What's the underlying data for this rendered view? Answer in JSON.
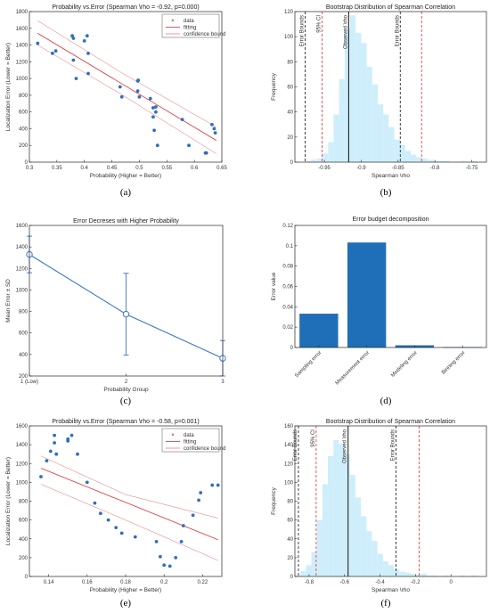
{
  "chart_data": [
    {
      "id": "a",
      "caption": "(a)",
      "type": "scatter",
      "title": "Probability vs.Error (Spearman \\rho = -0.92,  p=0.000)",
      "xlabel": "Probability (Higher = Better)",
      "ylabel": "Localization Error (Lower = Better)",
      "xlim": [
        0.3,
        0.65
      ],
      "ylim": [
        0,
        1800
      ],
      "xticks": [
        0.3,
        0.35,
        0.4,
        0.45,
        0.5,
        0.55,
        0.6,
        0.65
      ],
      "yticks": [
        0,
        200,
        400,
        600,
        800,
        1000,
        1200,
        1400,
        1600,
        1800
      ],
      "legend": [
        "data",
        "fitting",
        "confidence bound"
      ],
      "legend_position": "top-right",
      "points": [
        [
          0.315,
          1420
        ],
        [
          0.342,
          1300
        ],
        [
          0.348,
          1330
        ],
        [
          0.378,
          1510
        ],
        [
          0.38,
          1480
        ],
        [
          0.38,
          1220
        ],
        [
          0.385,
          1000
        ],
        [
          0.4,
          1450
        ],
        [
          0.405,
          1510
        ],
        [
          0.407,
          1300
        ],
        [
          0.407,
          1060
        ],
        [
          0.465,
          900
        ],
        [
          0.468,
          780
        ],
        [
          0.497,
          970
        ],
        [
          0.498,
          980
        ],
        [
          0.497,
          850
        ],
        [
          0.5,
          780
        ],
        [
          0.52,
          760
        ],
        [
          0.525,
          540
        ],
        [
          0.525,
          650
        ],
        [
          0.527,
          380
        ],
        [
          0.53,
          660
        ],
        [
          0.53,
          600
        ],
        [
          0.533,
          200
        ],
        [
          0.578,
          510
        ],
        [
          0.59,
          200
        ],
        [
          0.62,
          110
        ],
        [
          0.622,
          110
        ],
        [
          0.632,
          450
        ],
        [
          0.636,
          400
        ],
        [
          0.638,
          350
        ]
      ],
      "fit": [
        [
          0.315,
          1540
        ],
        [
          0.64,
          260
        ]
      ],
      "upper": [
        [
          0.315,
          1690
        ],
        [
          0.47,
          1060
        ],
        [
          0.64,
          420
        ]
      ],
      "lower": [
        [
          0.315,
          1400
        ],
        [
          0.47,
          800
        ],
        [
          0.64,
          100
        ]
      ]
    },
    {
      "id": "b",
      "caption": "(b)",
      "type": "histogram",
      "title": "Bootstrap Distribution of Spearman Correlation",
      "xlabel": "Spearman \\rho",
      "ylabel": "Frequency",
      "xlim": [
        -0.99,
        -0.73
      ],
      "ylim": [
        0,
        120
      ],
      "xticks": [
        -0.95,
        -0.9,
        -0.85,
        -0.8,
        -0.75
      ],
      "yticks": [
        0,
        20,
        40,
        60,
        80,
        100,
        120
      ],
      "bin_start": -0.975,
      "bin_width": 0.0075,
      "counts": [
        1,
        2,
        3,
        7,
        16,
        38,
        66,
        106,
        117,
        103,
        95,
        76,
        62,
        46,
        38,
        28,
        18,
        14,
        9,
        6,
        4,
        3,
        2,
        1,
        1,
        1,
        0,
        0,
        1,
        0,
        1
      ],
      "vlines": [
        {
          "x": -0.976,
          "label": "Error Bounds",
          "style": "black-dash"
        },
        {
          "x": -0.953,
          "label": "95% CI",
          "style": "red-dash"
        },
        {
          "x": -0.917,
          "label": "Observed \\rho",
          "style": "black-solid"
        },
        {
          "x": -0.847,
          "label": "Error Bounds",
          "style": "black-dash"
        },
        {
          "x": -0.818,
          "label": "",
          "style": "red-dash"
        }
      ]
    },
    {
      "id": "c",
      "caption": "(c)",
      "type": "line",
      "title": "Error Decreses with Higher Probability",
      "xlabel": "Probability Group",
      "ylabel": "Mean Error ± SD",
      "categories": [
        "1 (Low)",
        "2",
        "3"
      ],
      "xlim": [
        1,
        3
      ],
      "ylim": [
        200,
        1600
      ],
      "yticks": [
        200,
        400,
        600,
        800,
        1000,
        1200,
        1400,
        1600
      ],
      "means": [
        1330,
        775,
        365
      ],
      "sd": [
        170,
        380,
        165
      ]
    },
    {
      "id": "d",
      "caption": "(d)",
      "type": "bar",
      "title": "Error budget decomposition",
      "ylabel": "Error value",
      "categories": [
        "Sampling error",
        "Measurement error",
        "Modeling error",
        "Binning error"
      ],
      "values": [
        0.033,
        0.103,
        0.002,
        0.0002
      ],
      "ylim": [
        0,
        0.12
      ],
      "yticks": [
        0,
        0.02,
        0.04,
        0.06,
        0.08,
        0.1,
        0.12
      ]
    },
    {
      "id": "e",
      "caption": "(e)",
      "type": "scatter",
      "title": "Probability vs.Error (Spearman \\rho = -0.58,  p=0.001)",
      "xlabel": "Probability (Higher = Better)",
      "ylabel": "Localization Error (Lower = Better)",
      "xlim": [
        0.13,
        0.23
      ],
      "ylim": [
        0,
        1600
      ],
      "xticks": [
        0.14,
        0.16,
        0.18,
        0.2,
        0.22
      ],
      "yticks": [
        0,
        200,
        400,
        600,
        800,
        1000,
        1200,
        1400,
        1600
      ],
      "legend": [
        "data",
        "fitting",
        "confidence bound"
      ],
      "legend_position": "top-right",
      "points": [
        [
          0.136,
          1060
        ],
        [
          0.139,
          1230
        ],
        [
          0.141,
          1330
        ],
        [
          0.143,
          1500
        ],
        [
          0.143,
          1420
        ],
        [
          0.144,
          1300
        ],
        [
          0.15,
          1460
        ],
        [
          0.15,
          1440
        ],
        [
          0.152,
          1500
        ],
        [
          0.155,
          1300
        ],
        [
          0.16,
          1000
        ],
        [
          0.164,
          780
        ],
        [
          0.167,
          670
        ],
        [
          0.171,
          600
        ],
        [
          0.175,
          520
        ],
        [
          0.178,
          460
        ],
        [
          0.185,
          420
        ],
        [
          0.196,
          370
        ],
        [
          0.198,
          210
        ],
        [
          0.2,
          120
        ],
        [
          0.203,
          110
        ],
        [
          0.206,
          200
        ],
        [
          0.209,
          370
        ],
        [
          0.21,
          540
        ],
        [
          0.215,
          650
        ],
        [
          0.218,
          810
        ],
        [
          0.219,
          890
        ],
        [
          0.225,
          970
        ],
        [
          0.228,
          970
        ]
      ],
      "fit": [
        [
          0.136,
          1150
        ],
        [
          0.228,
          390
        ]
      ],
      "upper": [
        [
          0.136,
          1280
        ],
        [
          0.18,
          870
        ],
        [
          0.228,
          620
        ]
      ],
      "lower": [
        [
          0.136,
          980
        ],
        [
          0.18,
          600
        ],
        [
          0.228,
          170
        ]
      ]
    },
    {
      "id": "f",
      "caption": "(f)",
      "type": "histogram",
      "title": "Bootstrap Distribution of Spearman Correlation",
      "xlabel": "Spearman \\rho",
      "ylabel": "Frequency",
      "xlim": [
        -0.88,
        0.2
      ],
      "ylim": [
        0,
        160
      ],
      "xticks": [
        -0.8,
        -0.6,
        -0.4,
        -0.2,
        0
      ],
      "yticks": [
        0,
        20,
        40,
        60,
        80,
        100,
        120,
        140,
        160
      ],
      "bin_start": -0.88,
      "bin_width": 0.031,
      "counts": [
        1,
        6,
        12,
        26,
        60,
        98,
        128,
        145,
        141,
        130,
        108,
        84,
        64,
        48,
        38,
        24,
        16,
        12,
        8,
        5,
        4,
        3,
        2,
        3,
        1,
        1,
        0,
        1,
        0,
        0,
        1,
        0,
        1,
        0,
        0
      ],
      "vlines": [
        {
          "x": -0.86,
          "label": "Error Bounds",
          "style": "black-dash"
        },
        {
          "x": -0.76,
          "label": "95% CI",
          "style": "red-dash"
        },
        {
          "x": -0.58,
          "label": "Observed \\rho",
          "style": "black-solid"
        },
        {
          "x": -0.31,
          "label": "Error Bounds",
          "style": "black-dash"
        },
        {
          "x": -0.18,
          "label": "",
          "style": "red-dash"
        }
      ]
    }
  ]
}
